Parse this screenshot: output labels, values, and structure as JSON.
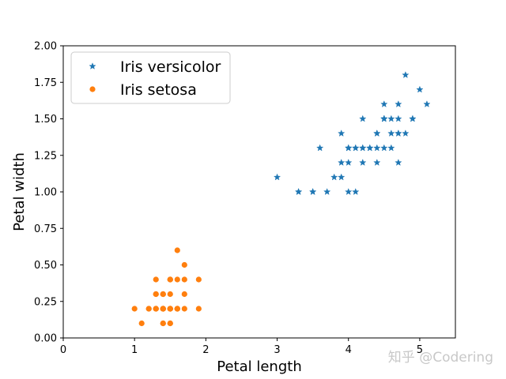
{
  "chart_data": {
    "type": "scatter",
    "title": "",
    "xlabel": "Petal length",
    "ylabel": "Petal width",
    "xlim": [
      0,
      5.5
    ],
    "ylim": [
      0,
      2.0
    ],
    "xticks": [
      0,
      1,
      2,
      3,
      4,
      5
    ],
    "yticks": [
      0.0,
      0.25,
      0.5,
      0.75,
      1.0,
      1.25,
      1.5,
      1.75,
      2.0
    ],
    "xtick_labels": [
      "0",
      "1",
      "2",
      "3",
      "4",
      "5"
    ],
    "ytick_labels": [
      "0.00",
      "0.25",
      "0.50",
      "0.75",
      "1.00",
      "1.25",
      "1.50",
      "1.75",
      "2.00"
    ],
    "grid": false,
    "legend_position": "top-left",
    "series": [
      {
        "name": "Iris versicolor",
        "marker": "star",
        "color": "#1f77b4",
        "points": [
          [
            4.7,
            1.4
          ],
          [
            4.5,
            1.5
          ],
          [
            4.9,
            1.5
          ],
          [
            4.0,
            1.3
          ],
          [
            4.6,
            1.5
          ],
          [
            4.5,
            1.3
          ],
          [
            4.7,
            1.6
          ],
          [
            3.3,
            1.0
          ],
          [
            4.6,
            1.3
          ],
          [
            3.9,
            1.4
          ],
          [
            3.5,
            1.0
          ],
          [
            4.2,
            1.5
          ],
          [
            4.0,
            1.0
          ],
          [
            4.7,
            1.4
          ],
          [
            3.6,
            1.3
          ],
          [
            4.4,
            1.4
          ],
          [
            4.5,
            1.5
          ],
          [
            4.1,
            1.0
          ],
          [
            4.5,
            1.5
          ],
          [
            3.9,
            1.1
          ],
          [
            4.8,
            1.8
          ],
          [
            4.0,
            1.3
          ],
          [
            4.9,
            1.5
          ],
          [
            4.7,
            1.2
          ],
          [
            4.3,
            1.3
          ],
          [
            4.4,
            1.4
          ],
          [
            4.8,
            1.4
          ],
          [
            5.0,
            1.7
          ],
          [
            4.5,
            1.5
          ],
          [
            3.5,
            1.0
          ],
          [
            3.8,
            1.1
          ],
          [
            3.7,
            1.0
          ],
          [
            3.9,
            1.2
          ],
          [
            5.1,
            1.6
          ],
          [
            4.5,
            1.5
          ],
          [
            4.5,
            1.6
          ],
          [
            4.7,
            1.5
          ],
          [
            4.4,
            1.3
          ],
          [
            4.1,
            1.3
          ],
          [
            4.0,
            1.3
          ],
          [
            4.4,
            1.2
          ],
          [
            4.6,
            1.4
          ],
          [
            4.0,
            1.2
          ],
          [
            3.3,
            1.0
          ],
          [
            4.2,
            1.3
          ],
          [
            4.2,
            1.2
          ],
          [
            4.2,
            1.3
          ],
          [
            4.3,
            1.3
          ],
          [
            3.0,
            1.1
          ],
          [
            4.1,
            1.3
          ]
        ]
      },
      {
        "name": "Iris setosa",
        "marker": "circle",
        "color": "#ff7f0e",
        "points": [
          [
            1.4,
            0.2
          ],
          [
            1.4,
            0.2
          ],
          [
            1.3,
            0.2
          ],
          [
            1.5,
            0.2
          ],
          [
            1.4,
            0.2
          ],
          [
            1.7,
            0.4
          ],
          [
            1.4,
            0.3
          ],
          [
            1.5,
            0.2
          ],
          [
            1.4,
            0.2
          ],
          [
            1.5,
            0.1
          ],
          [
            1.5,
            0.2
          ],
          [
            1.6,
            0.2
          ],
          [
            1.4,
            0.1
          ],
          [
            1.1,
            0.1
          ],
          [
            1.2,
            0.2
          ],
          [
            1.5,
            0.4
          ],
          [
            1.3,
            0.4
          ],
          [
            1.4,
            0.3
          ],
          [
            1.7,
            0.3
          ],
          [
            1.5,
            0.3
          ],
          [
            1.7,
            0.2
          ],
          [
            1.5,
            0.4
          ],
          [
            1.0,
            0.2
          ],
          [
            1.7,
            0.5
          ],
          [
            1.9,
            0.2
          ],
          [
            1.6,
            0.2
          ],
          [
            1.6,
            0.4
          ],
          [
            1.5,
            0.2
          ],
          [
            1.4,
            0.2
          ],
          [
            1.6,
            0.2
          ],
          [
            1.6,
            0.2
          ],
          [
            1.5,
            0.4
          ],
          [
            1.5,
            0.1
          ],
          [
            1.4,
            0.2
          ],
          [
            1.5,
            0.2
          ],
          [
            1.2,
            0.2
          ],
          [
            1.3,
            0.2
          ],
          [
            1.4,
            0.1
          ],
          [
            1.3,
            0.2
          ],
          [
            1.5,
            0.2
          ],
          [
            1.3,
            0.3
          ],
          [
            1.3,
            0.3
          ],
          [
            1.3,
            0.2
          ],
          [
            1.6,
            0.6
          ],
          [
            1.9,
            0.4
          ],
          [
            1.4,
            0.3
          ],
          [
            1.6,
            0.2
          ],
          [
            1.4,
            0.2
          ],
          [
            1.5,
            0.2
          ],
          [
            1.4,
            0.2
          ]
        ]
      }
    ]
  },
  "watermark": {
    "text": "知乎 @Codering"
  }
}
